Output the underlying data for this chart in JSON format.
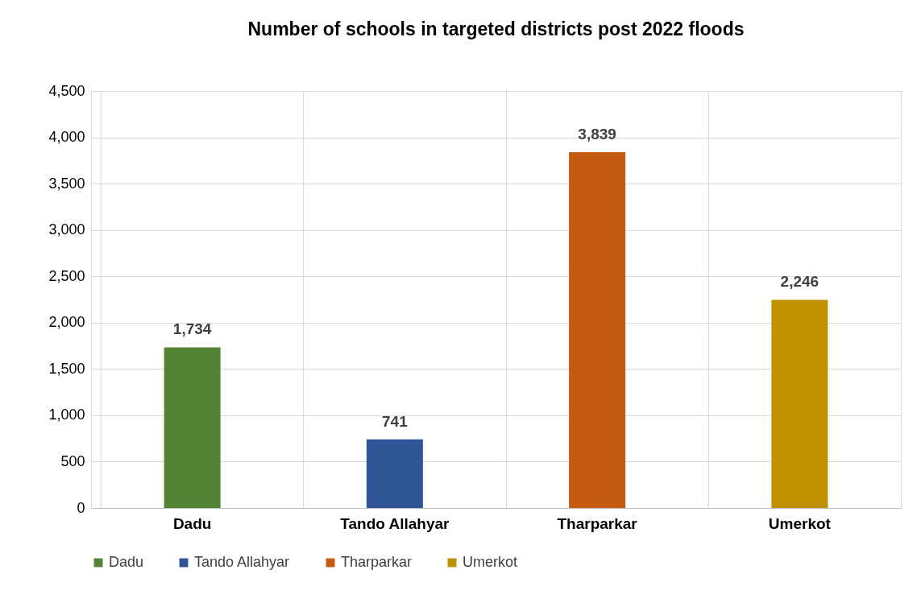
{
  "chart_data": {
    "type": "bar",
    "title": "Number of schools in targeted districts post 2022 floods",
    "categories": [
      "Dadu",
      "Tando Allahyar",
      "Tharparkar",
      "Umerkot"
    ],
    "stacked": true,
    "series": [
      {
        "name": "Dadu",
        "color": "#548235",
        "values": [
          1734,
          null,
          null,
          null
        ],
        "value_labels": [
          "1,734",
          null,
          null,
          null
        ]
      },
      {
        "name": "Tando Allahyar",
        "color": "#2f5597",
        "values": [
          null,
          741,
          null,
          null
        ],
        "value_labels": [
          null,
          "741",
          null,
          null
        ]
      },
      {
        "name": "Tharparkar",
        "color": "#c55a11",
        "values": [
          null,
          null,
          3839,
          null
        ],
        "value_labels": [
          null,
          null,
          "3,839",
          null
        ]
      },
      {
        "name": "Umerkot",
        "color": "#bf9000",
        "values": [
          null,
          null,
          null,
          2246
        ],
        "value_labels": [
          null,
          null,
          null,
          "2,246"
        ]
      }
    ],
    "ylim": [
      0,
      4500
    ],
    "yticks": [
      0,
      {
        "value": 500,
        "label": "500"
      },
      {
        "value": 1000,
        "label": "1,000"
      },
      {
        "value": 1500,
        "label": "1,500"
      },
      {
        "value": 2000,
        "label": "2,000"
      },
      {
        "value": 2500,
        "label": "2,500"
      },
      {
        "value": 3000,
        "label": "3,000"
      },
      {
        "value": 3500,
        "label": "3,500"
      },
      {
        "value": 4000,
        "label": "4,000"
      },
      {
        "value": 4500,
        "label": "4,500"
      }
    ],
    "grid": true,
    "legend": "bottom"
  }
}
